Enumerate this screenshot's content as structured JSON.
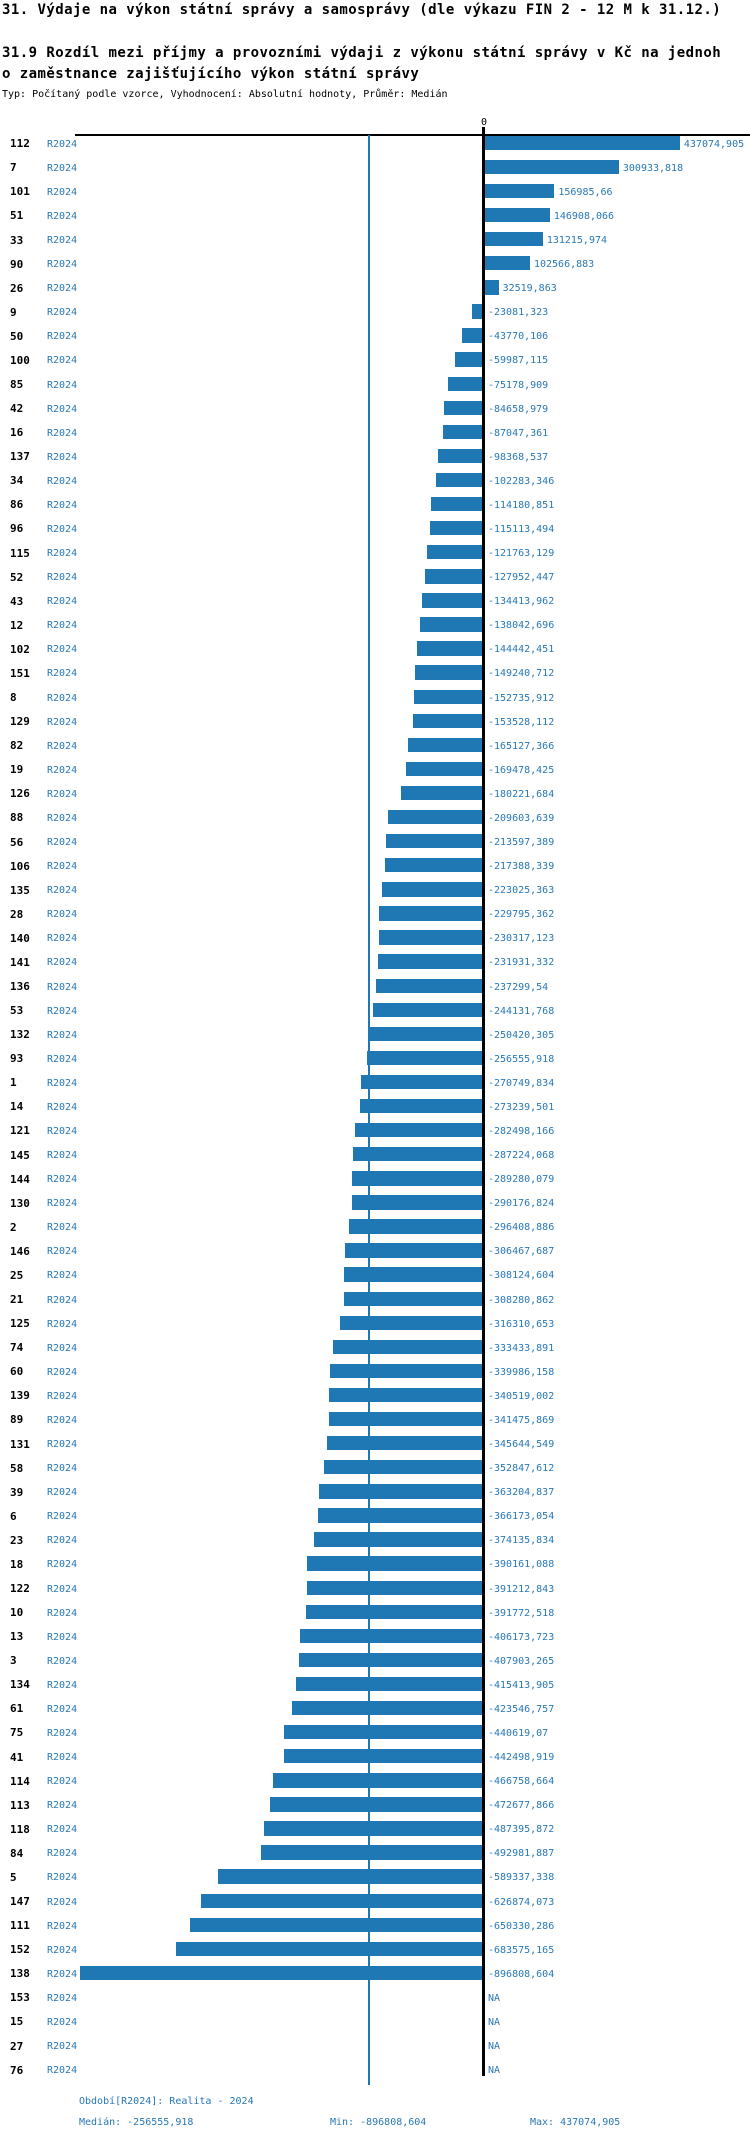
{
  "header": {
    "title": "31. Výdaje na výkon státní správy a samosprávy (dle výkazu FIN 2 - 12 M k 31.12.)",
    "subtitle_line1": "31.9 Rozdíl mezi příjmy a provozními výdaji z výkonu státní správy v Kč na jednoh",
    "subtitle_line2": "o zaměstnance zajišťujícího výkon státní správy",
    "meta": "Typ: Počítaný podle vzorce, Vyhodnocení: Absolutní hodnoty, Průměr: Medián"
  },
  "axis": {
    "zero_label": "0"
  },
  "footer": {
    "period": "Období[R2024]: Realita - 2024",
    "median": "Medián: -256555,918",
    "min": "Min: -896808,604",
    "max": "Max: 437074,905"
  },
  "colors": {
    "bar": "#1f77b4",
    "blue_text": "#2878b8",
    "median_line": "#1f77b4",
    "axis": "#000000"
  },
  "chart_data": {
    "type": "bar",
    "orientation": "horizontal",
    "title": "31. Výdaje na výkon státní správy a samosprávy (dle výkazu FIN 2 - 12 M k 31.12.)",
    "subtitle": "31.9 Rozdíl mezi příjmy a provozními výdaji z výkonu státní správy v Kč na jednoho zaměstnance zajišťujícího výkon státní správy",
    "period_label": "R2024",
    "value_axis": {
      "zero_tick": "0",
      "min": -896808.604,
      "max": 437074.905,
      "median": -256555.918
    },
    "median_line_value": -256555.918,
    "rows": [
      {
        "id": "112",
        "value": 437074.905,
        "display": "437074,905"
      },
      {
        "id": "7",
        "value": 300933.818,
        "display": "300933,818"
      },
      {
        "id": "101",
        "value": 156985.66,
        "display": "156985,66"
      },
      {
        "id": "51",
        "value": 146908.066,
        "display": "146908,066"
      },
      {
        "id": "33",
        "value": 131215.974,
        "display": "131215,974"
      },
      {
        "id": "90",
        "value": 102566.883,
        "display": "102566,883"
      },
      {
        "id": "26",
        "value": 32519.863,
        "display": "32519,863"
      },
      {
        "id": "9",
        "value": -23081.323,
        "display": "-23081,323"
      },
      {
        "id": "50",
        "value": -43770.106,
        "display": "-43770,106"
      },
      {
        "id": "100",
        "value": -59987.115,
        "display": "-59987,115"
      },
      {
        "id": "85",
        "value": -75178.909,
        "display": "-75178,909"
      },
      {
        "id": "42",
        "value": -84658.979,
        "display": "-84658,979"
      },
      {
        "id": "16",
        "value": -87047.361,
        "display": "-87047,361"
      },
      {
        "id": "137",
        "value": -98368.537,
        "display": "-98368,537"
      },
      {
        "id": "34",
        "value": -102283.346,
        "display": "-102283,346"
      },
      {
        "id": "86",
        "value": -114180.851,
        "display": "-114180,851"
      },
      {
        "id": "96",
        "value": -115113.494,
        "display": "-115113,494"
      },
      {
        "id": "115",
        "value": -121763.129,
        "display": "-121763,129"
      },
      {
        "id": "52",
        "value": -127952.447,
        "display": "-127952,447"
      },
      {
        "id": "43",
        "value": -134413.962,
        "display": "-134413,962"
      },
      {
        "id": "12",
        "value": -138042.696,
        "display": "-138042,696"
      },
      {
        "id": "102",
        "value": -144442.451,
        "display": "-144442,451"
      },
      {
        "id": "151",
        "value": -149240.712,
        "display": "-149240,712"
      },
      {
        "id": "8",
        "value": -152735.912,
        "display": "-152735,912"
      },
      {
        "id": "129",
        "value": -153528.112,
        "display": "-153528,112"
      },
      {
        "id": "82",
        "value": -165127.366,
        "display": "-165127,366"
      },
      {
        "id": "19",
        "value": -169478.425,
        "display": "-169478,425"
      },
      {
        "id": "126",
        "value": -180221.684,
        "display": "-180221,684"
      },
      {
        "id": "88",
        "value": -209603.639,
        "display": "-209603,639"
      },
      {
        "id": "56",
        "value": -213597.389,
        "display": "-213597,389"
      },
      {
        "id": "106",
        "value": -217388.339,
        "display": "-217388,339"
      },
      {
        "id": "135",
        "value": -223025.363,
        "display": "-223025,363"
      },
      {
        "id": "28",
        "value": -229795.362,
        "display": "-229795,362"
      },
      {
        "id": "140",
        "value": -230317.123,
        "display": "-230317,123"
      },
      {
        "id": "141",
        "value": -231931.332,
        "display": "-231931,332"
      },
      {
        "id": "136",
        "value": -237299.54,
        "display": "-237299,54"
      },
      {
        "id": "53",
        "value": -244131.768,
        "display": "-244131,768"
      },
      {
        "id": "132",
        "value": -250420.305,
        "display": "-250420,305"
      },
      {
        "id": "93",
        "value": -256555.918,
        "display": "-256555,918"
      },
      {
        "id": "1",
        "value": -270749.834,
        "display": "-270749,834"
      },
      {
        "id": "14",
        "value": -273239.501,
        "display": "-273239,501"
      },
      {
        "id": "121",
        "value": -282498.166,
        "display": "-282498,166"
      },
      {
        "id": "145",
        "value": -287224.068,
        "display": "-287224,068"
      },
      {
        "id": "144",
        "value": -289280.079,
        "display": "-289280,079"
      },
      {
        "id": "130",
        "value": -290176.824,
        "display": "-290176,824"
      },
      {
        "id": "2",
        "value": -296408.886,
        "display": "-296408,886"
      },
      {
        "id": "146",
        "value": -306467.687,
        "display": "-306467,687"
      },
      {
        "id": "25",
        "value": -308124.604,
        "display": "-308124,604"
      },
      {
        "id": "21",
        "value": -308280.862,
        "display": "-308280,862"
      },
      {
        "id": "125",
        "value": -316310.653,
        "display": "-316310,653"
      },
      {
        "id": "74",
        "value": -333433.891,
        "display": "-333433,891"
      },
      {
        "id": "60",
        "value": -339986.158,
        "display": "-339986,158"
      },
      {
        "id": "139",
        "value": -340519.002,
        "display": "-340519,002"
      },
      {
        "id": "89",
        "value": -341475.869,
        "display": "-341475,869"
      },
      {
        "id": "131",
        "value": -345644.549,
        "display": "-345644,549"
      },
      {
        "id": "58",
        "value": -352847.612,
        "display": "-352847,612"
      },
      {
        "id": "39",
        "value": -363204.837,
        "display": "-363204,837"
      },
      {
        "id": "6",
        "value": -366173.054,
        "display": "-366173,054"
      },
      {
        "id": "23",
        "value": -374135.834,
        "display": "-374135,834"
      },
      {
        "id": "18",
        "value": -390161.088,
        "display": "-390161,088"
      },
      {
        "id": "122",
        "value": -391212.843,
        "display": "-391212,843"
      },
      {
        "id": "10",
        "value": -391772.518,
        "display": "-391772,518"
      },
      {
        "id": "13",
        "value": -406173.723,
        "display": "-406173,723"
      },
      {
        "id": "3",
        "value": -407903.265,
        "display": "-407903,265"
      },
      {
        "id": "134",
        "value": -415413.905,
        "display": "-415413,905"
      },
      {
        "id": "61",
        "value": -423546.757,
        "display": "-423546,757"
      },
      {
        "id": "75",
        "value": -440619.07,
        "display": "-440619,07"
      },
      {
        "id": "41",
        "value": -442498.919,
        "display": "-442498,919"
      },
      {
        "id": "114",
        "value": -466758.664,
        "display": "-466758,664"
      },
      {
        "id": "113",
        "value": -472677.866,
        "display": "-472677,866"
      },
      {
        "id": "118",
        "value": -487395.872,
        "display": "-487395,872"
      },
      {
        "id": "84",
        "value": -492981.887,
        "display": "-492981,887"
      },
      {
        "id": "5",
        "value": -589337.338,
        "display": "-589337,338"
      },
      {
        "id": "147",
        "value": -626874.073,
        "display": "-626874,073"
      },
      {
        "id": "111",
        "value": -650330.286,
        "display": "-650330,286"
      },
      {
        "id": "152",
        "value": -683575.165,
        "display": "-683575,165"
      },
      {
        "id": "138",
        "value": -896808.604,
        "display": "-896808,604"
      },
      {
        "id": "153",
        "value": null,
        "display": "NA"
      },
      {
        "id": "15",
        "value": null,
        "display": "NA"
      },
      {
        "id": "27",
        "value": null,
        "display": "NA"
      },
      {
        "id": "76",
        "value": null,
        "display": "NA"
      }
    ]
  }
}
